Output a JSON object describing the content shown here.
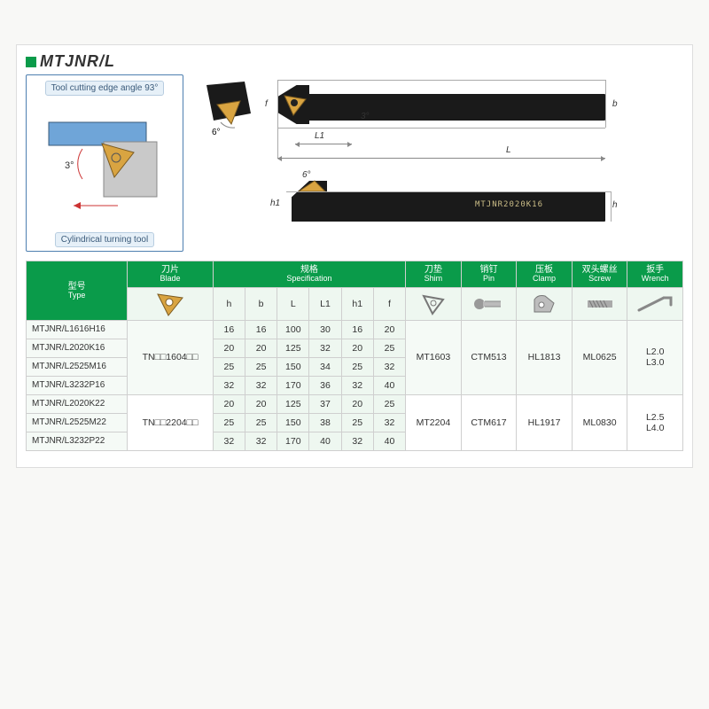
{
  "title": "MTJNR/L",
  "callout": {
    "top_label": "Tool cutting edge angle 93°",
    "bottom_label": "Cylindrical turning tool",
    "angle": "3°"
  },
  "tech": {
    "angle_a": "6°",
    "angle_b": "3°",
    "angle_c": "6°",
    "dim_f": "f",
    "dim_b": "b",
    "dim_L": "L",
    "dim_L1": "L1",
    "dim_h1": "h1",
    "dim_h": "h",
    "engrave": "MTJNR2020K16"
  },
  "headers": {
    "type_cn": "型号",
    "type_en": "Type",
    "blade_cn": "刀片",
    "blade_en": "Blade",
    "spec_cn": "规格",
    "spec_en": "Specification",
    "shim_cn": "刀垫",
    "shim_en": "Shim",
    "pin_cn": "销钉",
    "pin_en": "Pin",
    "clamp_cn": "压板",
    "clamp_en": "Clamp",
    "screw_cn": "双头螺丝",
    "screw_en": "Screw",
    "wrench_cn": "扳手",
    "wrench_en": "Wrench",
    "h": "h",
    "b": "b",
    "L": "L",
    "L1": "L1",
    "h1": "h1",
    "f": "f"
  },
  "colors": {
    "brand_green": "#0a9b4a",
    "row_tint": "#f5faf6",
    "head_sub": "#eef7f0",
    "blade_gold": "#d9a441",
    "tool_black": "#1a1a1a",
    "callout_border": "#4e7fb0"
  },
  "groups": [
    {
      "blade": "TN□□1604□□",
      "shim": "MT1603",
      "pin": "CTM513",
      "clamp": "HL1813",
      "screw": "ML0625",
      "wrench": "L2.0\nL3.0",
      "rows": [
        {
          "type": "MTJNR/L1616H16",
          "h": "16",
          "b": "16",
          "L": "100",
          "L1": "30",
          "h1": "16",
          "f": "20"
        },
        {
          "type": "MTJNR/L2020K16",
          "h": "20",
          "b": "20",
          "L": "125",
          "L1": "32",
          "h1": "20",
          "f": "25"
        },
        {
          "type": "MTJNR/L2525M16",
          "h": "25",
          "b": "25",
          "L": "150",
          "L1": "34",
          "h1": "25",
          "f": "32"
        },
        {
          "type": "MTJNR/L3232P16",
          "h": "32",
          "b": "32",
          "L": "170",
          "L1": "36",
          "h1": "32",
          "f": "40"
        }
      ]
    },
    {
      "blade": "TN□□2204□□",
      "shim": "MT2204",
      "pin": "CTM617",
      "clamp": "HL1917",
      "screw": "ML0830",
      "wrench": "L2.5\nL4.0",
      "rows": [
        {
          "type": "MTJNR/L2020K22",
          "h": "20",
          "b": "20",
          "L": "125",
          "L1": "37",
          "h1": "20",
          "f": "25"
        },
        {
          "type": "MTJNR/L2525M22",
          "h": "25",
          "b": "25",
          "L": "150",
          "L1": "38",
          "h1": "25",
          "f": "32"
        },
        {
          "type": "MTJNR/L3232P22",
          "h": "32",
          "b": "32",
          "L": "170",
          "L1": "40",
          "h1": "32",
          "f": "40"
        }
      ]
    }
  ]
}
